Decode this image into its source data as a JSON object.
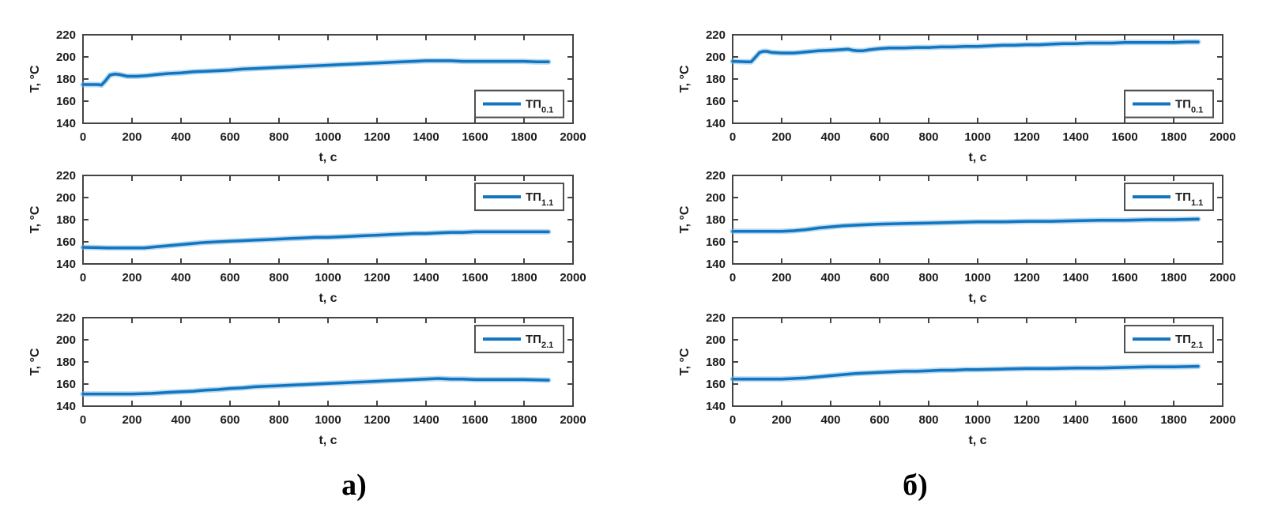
{
  "figure": {
    "captions": [
      "а)",
      "б)"
    ],
    "colors": {
      "line": "#1375c0",
      "line_halo": "#7db9e3",
      "axis": "#444444",
      "text": "#1c1c1c",
      "legend_border": "#4f4f4f",
      "background": "#ffffff"
    }
  },
  "chart_data": [
    {
      "id": "a-top",
      "type": "line",
      "xlabel": "t, с",
      "ylabel": "T, °C",
      "xlim": [
        0,
        2000
      ],
      "ylim": [
        140,
        220
      ],
      "xticks": [
        0,
        200,
        400,
        600,
        800,
        1000,
        1200,
        1400,
        1600,
        1800,
        2000
      ],
      "yticks": [
        140,
        160,
        180,
        200,
        220
      ],
      "grid": false,
      "legend": {
        "label_main": "ТП",
        "label_sub": "0.1",
        "position": "right",
        "y_frac": 0.63
      },
      "series": [
        {
          "name": "ТП 0.1",
          "points": [
            [
              0,
              175
            ],
            [
              60,
              175
            ],
            [
              75,
              174.5
            ],
            [
              90,
              178
            ],
            [
              110,
              183.5
            ],
            [
              130,
              184.5
            ],
            [
              150,
              184
            ],
            [
              180,
              182.5
            ],
            [
              220,
              182.5
            ],
            [
              260,
              183
            ],
            [
              300,
              184
            ],
            [
              350,
              185
            ],
            [
              400,
              185.5
            ],
            [
              450,
              186.5
            ],
            [
              500,
              187
            ],
            [
              550,
              187.5
            ],
            [
              600,
              188
            ],
            [
              650,
              189
            ],
            [
              700,
              189.5
            ],
            [
              750,
              190
            ],
            [
              800,
              190.5
            ],
            [
              850,
              191
            ],
            [
              900,
              191.5
            ],
            [
              950,
              192
            ],
            [
              1000,
              192.5
            ],
            [
              1050,
              193
            ],
            [
              1100,
              193.5
            ],
            [
              1150,
              194
            ],
            [
              1200,
              194.5
            ],
            [
              1250,
              195
            ],
            [
              1300,
              195.5
            ],
            [
              1350,
              196
            ],
            [
              1400,
              196.5
            ],
            [
              1450,
              196.5
            ],
            [
              1500,
              196.5
            ],
            [
              1550,
              196
            ],
            [
              1600,
              196
            ],
            [
              1700,
              196
            ],
            [
              1800,
              196
            ],
            [
              1850,
              195.5
            ],
            [
              1900,
              195.5
            ]
          ]
        }
      ]
    },
    {
      "id": "b-top",
      "type": "line",
      "xlabel": "t, с",
      "ylabel": "T, °C",
      "xlim": [
        0,
        2000
      ],
      "ylim": [
        140,
        220
      ],
      "xticks": [
        0,
        200,
        400,
        600,
        800,
        1000,
        1200,
        1400,
        1600,
        1800,
        2000
      ],
      "yticks": [
        140,
        160,
        180,
        200,
        220
      ],
      "grid": false,
      "legend": {
        "label_main": "ТП",
        "label_sub": "0.1",
        "position": "right",
        "y_frac": 0.63
      },
      "series": [
        {
          "name": "ТП 0.1",
          "points": [
            [
              0,
              196
            ],
            [
              60,
              195.5
            ],
            [
              75,
              195.5
            ],
            [
              90,
              199
            ],
            [
              110,
              204
            ],
            [
              125,
              205
            ],
            [
              140,
              205
            ],
            [
              160,
              204
            ],
            [
              200,
              203.5
            ],
            [
              250,
              203.5
            ],
            [
              300,
              204.5
            ],
            [
              350,
              205.5
            ],
            [
              400,
              206
            ],
            [
              440,
              206.5
            ],
            [
              470,
              207
            ],
            [
              490,
              206
            ],
            [
              510,
              205.5
            ],
            [
              530,
              205.5
            ],
            [
              560,
              206.5
            ],
            [
              600,
              207.5
            ],
            [
              640,
              208
            ],
            [
              700,
              208
            ],
            [
              750,
              208.5
            ],
            [
              800,
              208.5
            ],
            [
              850,
              209
            ],
            [
              900,
              209
            ],
            [
              950,
              209.5
            ],
            [
              1000,
              209.5
            ],
            [
              1050,
              210
            ],
            [
              1100,
              210.5
            ],
            [
              1150,
              210.5
            ],
            [
              1200,
              211
            ],
            [
              1250,
              211
            ],
            [
              1300,
              211.5
            ],
            [
              1350,
              212
            ],
            [
              1400,
              212
            ],
            [
              1450,
              212.5
            ],
            [
              1500,
              212.5
            ],
            [
              1550,
              212.5
            ],
            [
              1600,
              213
            ],
            [
              1700,
              213
            ],
            [
              1800,
              213
            ],
            [
              1850,
              213.5
            ],
            [
              1900,
              213.5
            ]
          ]
        }
      ]
    },
    {
      "id": "a-mid",
      "type": "line",
      "xlabel": "t, с",
      "ylabel": "T, °C",
      "xlim": [
        0,
        2000
      ],
      "ylim": [
        140,
        220
      ],
      "xticks": [
        0,
        200,
        400,
        600,
        800,
        1000,
        1200,
        1400,
        1600,
        1800,
        2000
      ],
      "yticks": [
        140,
        160,
        180,
        200,
        220
      ],
      "grid": false,
      "legend": {
        "label_main": "ТП",
        "label_sub": "1.1",
        "position": "right",
        "y_frac": 0.09
      },
      "series": [
        {
          "name": "ТП 1.1",
          "points": [
            [
              0,
              155
            ],
            [
              100,
              154.5
            ],
            [
              200,
              154.5
            ],
            [
              250,
              154.5
            ],
            [
              300,
              155.5
            ],
            [
              350,
              156.5
            ],
            [
              400,
              157.5
            ],
            [
              450,
              158.5
            ],
            [
              500,
              159.5
            ],
            [
              550,
              160
            ],
            [
              600,
              160.5
            ],
            [
              650,
              161
            ],
            [
              700,
              161.5
            ],
            [
              750,
              162
            ],
            [
              800,
              162.5
            ],
            [
              850,
              163
            ],
            [
              900,
              163.5
            ],
            [
              950,
              164
            ],
            [
              1000,
              164
            ],
            [
              1050,
              164.5
            ],
            [
              1100,
              165
            ],
            [
              1150,
              165.5
            ],
            [
              1200,
              166
            ],
            [
              1250,
              166.5
            ],
            [
              1300,
              167
            ],
            [
              1350,
              167.5
            ],
            [
              1400,
              167.5
            ],
            [
              1450,
              168
            ],
            [
              1500,
              168.5
            ],
            [
              1550,
              168.5
            ],
            [
              1600,
              169
            ],
            [
              1700,
              169
            ],
            [
              1800,
              169
            ],
            [
              1900,
              169
            ]
          ]
        }
      ]
    },
    {
      "id": "b-mid",
      "type": "line",
      "xlabel": "t, с",
      "ylabel": "T, °C",
      "xlim": [
        0,
        2000
      ],
      "ylim": [
        140,
        220
      ],
      "xticks": [
        0,
        200,
        400,
        600,
        800,
        1000,
        1200,
        1400,
        1600,
        1800,
        2000
      ],
      "yticks": [
        140,
        160,
        180,
        200,
        220
      ],
      "grid": false,
      "legend": {
        "label_main": "ТП",
        "label_sub": "1.1",
        "position": "right",
        "y_frac": 0.09
      },
      "series": [
        {
          "name": "ТП 1.1",
          "points": [
            [
              0,
              169.5
            ],
            [
              100,
              169.5
            ],
            [
              200,
              169.5
            ],
            [
              250,
              170
            ],
            [
              300,
              171
            ],
            [
              350,
              172.5
            ],
            [
              400,
              173.5
            ],
            [
              450,
              174.5
            ],
            [
              500,
              175
            ],
            [
              550,
              175.5
            ],
            [
              600,
              176
            ],
            [
              700,
              176.5
            ],
            [
              800,
              177
            ],
            [
              900,
              177.5
            ],
            [
              1000,
              178
            ],
            [
              1100,
              178
            ],
            [
              1200,
              178.5
            ],
            [
              1300,
              178.5
            ],
            [
              1400,
              179
            ],
            [
              1500,
              179.5
            ],
            [
              1600,
              179.5
            ],
            [
              1700,
              180
            ],
            [
              1800,
              180
            ],
            [
              1900,
              180.5
            ]
          ]
        }
      ]
    },
    {
      "id": "a-bottom",
      "type": "line",
      "xlabel": "t, с",
      "ylabel": "T, °C",
      "xlim": [
        0,
        2000
      ],
      "ylim": [
        140,
        220
      ],
      "xticks": [
        0,
        200,
        400,
        600,
        800,
        1000,
        1200,
        1400,
        1600,
        1800,
        2000
      ],
      "yticks": [
        140,
        160,
        180,
        200,
        220
      ],
      "grid": false,
      "legend": {
        "label_main": "ТП",
        "label_sub": "2.1",
        "position": "right",
        "y_frac": 0.09
      },
      "series": [
        {
          "name": "ТП 2.1",
          "points": [
            [
              0,
              151
            ],
            [
              100,
              151
            ],
            [
              200,
              151
            ],
            [
              280,
              151.5
            ],
            [
              350,
              152.5
            ],
            [
              400,
              153
            ],
            [
              450,
              153.5
            ],
            [
              500,
              154.5
            ],
            [
              550,
              155
            ],
            [
              600,
              156
            ],
            [
              650,
              156.5
            ],
            [
              700,
              157.5
            ],
            [
              750,
              158
            ],
            [
              800,
              158.5
            ],
            [
              850,
              159
            ],
            [
              900,
              159.5
            ],
            [
              950,
              160
            ],
            [
              1000,
              160.5
            ],
            [
              1050,
              161
            ],
            [
              1100,
              161.5
            ],
            [
              1150,
              162
            ],
            [
              1200,
              162.5
            ],
            [
              1250,
              163
            ],
            [
              1300,
              163.5
            ],
            [
              1350,
              164
            ],
            [
              1400,
              164.5
            ],
            [
              1450,
              165
            ],
            [
              1500,
              164.5
            ],
            [
              1550,
              164.5
            ],
            [
              1600,
              164
            ],
            [
              1700,
              164
            ],
            [
              1800,
              164
            ],
            [
              1900,
              163.5
            ]
          ]
        }
      ]
    },
    {
      "id": "b-bottom",
      "type": "line",
      "xlabel": "t, с",
      "ylabel": "T, °C",
      "xlim": [
        0,
        2000
      ],
      "ylim": [
        140,
        220
      ],
      "xticks": [
        0,
        200,
        400,
        600,
        800,
        1000,
        1200,
        1400,
        1600,
        1800,
        2000
      ],
      "yticks": [
        140,
        160,
        180,
        200,
        220
      ],
      "grid": false,
      "legend": {
        "label_main": "ТП",
        "label_sub": "2.1",
        "position": "right",
        "y_frac": 0.09
      },
      "series": [
        {
          "name": "ТП 2.1",
          "points": [
            [
              0,
              164.5
            ],
            [
              100,
              164.5
            ],
            [
              200,
              164.5
            ],
            [
              250,
              165
            ],
            [
              300,
              165.5
            ],
            [
              350,
              166.5
            ],
            [
              400,
              167.5
            ],
            [
              450,
              168.5
            ],
            [
              500,
              169.5
            ],
            [
              550,
              170
            ],
            [
              600,
              170.5
            ],
            [
              650,
              171
            ],
            [
              700,
              171.5
            ],
            [
              750,
              171.5
            ],
            [
              800,
              172
            ],
            [
              850,
              172.5
            ],
            [
              900,
              172.5
            ],
            [
              950,
              173
            ],
            [
              1000,
              173
            ],
            [
              1100,
              173.5
            ],
            [
              1200,
              174
            ],
            [
              1300,
              174
            ],
            [
              1400,
              174.5
            ],
            [
              1500,
              174.5
            ],
            [
              1600,
              175
            ],
            [
              1700,
              175.5
            ],
            [
              1800,
              175.5
            ],
            [
              1900,
              176
            ]
          ]
        }
      ]
    }
  ]
}
